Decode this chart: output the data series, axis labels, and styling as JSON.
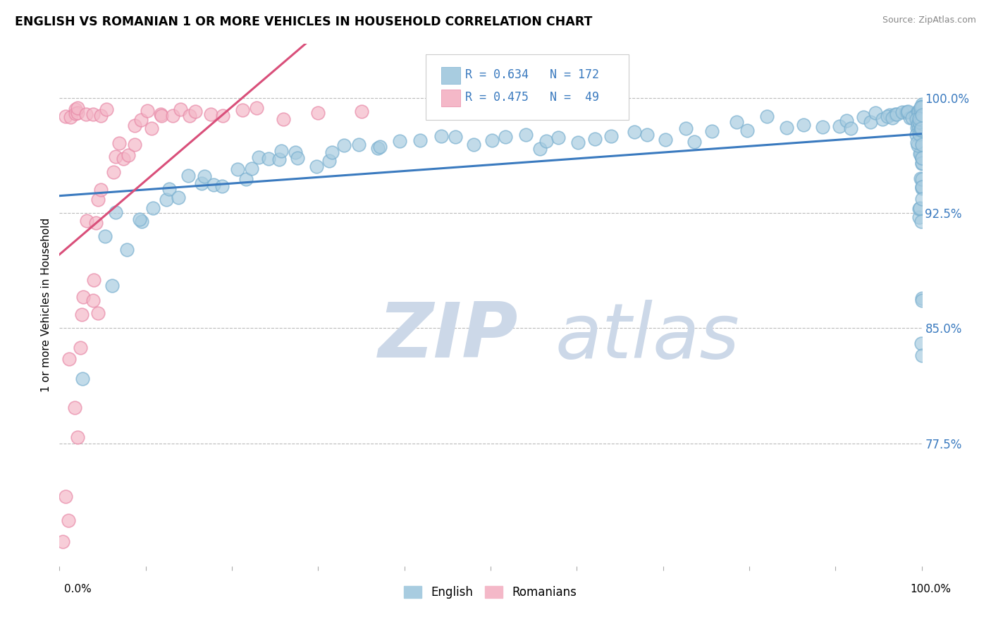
{
  "title": "ENGLISH VS ROMANIAN 1 OR MORE VEHICLES IN HOUSEHOLD CORRELATION CHART",
  "source": "Source: ZipAtlas.com",
  "ylabel": "1 or more Vehicles in Household",
  "ytick_labels": [
    "77.5%",
    "85.0%",
    "92.5%",
    "100.0%"
  ],
  "ytick_values": [
    0.775,
    0.85,
    0.925,
    1.0
  ],
  "legend_english_r": "R = 0.634",
  "legend_english_n": "N = 172",
  "legend_romanian_r": "R = 0.475",
  "legend_romanian_n": "N =  49",
  "legend_label_english": "English",
  "legend_label_romanian": "Romanians",
  "english_color": "#a8cce0",
  "english_edge_color": "#7ab0d0",
  "romanian_color": "#f4b8c8",
  "romanian_edge_color": "#e88aa8",
  "english_line_color": "#3a7abf",
  "romanian_line_color": "#d94f7a",
  "watermark_zip": "ZIP",
  "watermark_atlas": "atlas",
  "watermark_color": "#ccd8e8",
  "xlim": [
    0.0,
    1.0
  ],
  "ylim": [
    0.695,
    1.035
  ],
  "english_x": [
    0.03,
    0.05,
    0.06,
    0.07,
    0.08,
    0.09,
    0.1,
    0.11,
    0.12,
    0.13,
    0.14,
    0.15,
    0.16,
    0.17,
    0.18,
    0.19,
    0.2,
    0.21,
    0.22,
    0.23,
    0.24,
    0.25,
    0.26,
    0.27,
    0.28,
    0.3,
    0.31,
    0.32,
    0.33,
    0.35,
    0.37,
    0.38,
    0.4,
    0.42,
    0.44,
    0.46,
    0.48,
    0.5,
    0.52,
    0.54,
    0.56,
    0.57,
    0.58,
    0.6,
    0.62,
    0.64,
    0.66,
    0.68,
    0.7,
    0.72,
    0.74,
    0.76,
    0.78,
    0.8,
    0.82,
    0.84,
    0.86,
    0.88,
    0.9,
    0.91,
    0.92,
    0.93,
    0.94,
    0.95,
    0.95,
    0.96,
    0.96,
    0.97,
    0.97,
    0.97,
    0.98,
    0.98,
    0.98,
    0.99,
    0.99,
    0.99,
    0.99,
    1.0,
    1.0,
    1.0,
    1.0,
    1.0,
    1.0,
    1.0,
    1.0,
    1.0,
    1.0,
    1.0,
    1.0,
    1.0,
    1.0,
    1.0,
    1.0,
    1.0,
    1.0,
    1.0,
    1.0,
    1.0,
    1.0,
    1.0,
    1.0,
    1.0,
    1.0,
    1.0,
    1.0,
    1.0,
    1.0,
    1.0,
    1.0,
    1.0,
    1.0,
    1.0,
    1.0,
    1.0,
    1.0,
    1.0,
    1.0,
    1.0,
    1.0,
    1.0,
    1.0,
    1.0,
    1.0,
    1.0,
    1.0,
    1.0,
    1.0,
    1.0,
    1.0,
    1.0,
    1.0,
    1.0,
    1.0,
    1.0,
    1.0,
    1.0,
    1.0,
    1.0,
    1.0,
    1.0,
    1.0,
    1.0,
    1.0,
    1.0,
    1.0,
    1.0,
    1.0,
    1.0,
    1.0,
    1.0,
    1.0,
    1.0,
    1.0,
    1.0,
    1.0,
    1.0,
    1.0,
    1.0,
    1.0,
    1.0,
    1.0,
    1.0,
    1.0,
    1.0,
    1.0,
    1.0,
    1.0,
    1.0,
    1.0,
    1.0
  ],
  "english_y": [
    0.82,
    0.91,
    0.88,
    0.925,
    0.9,
    0.915,
    0.92,
    0.93,
    0.935,
    0.94,
    0.935,
    0.945,
    0.94,
    0.95,
    0.945,
    0.95,
    0.955,
    0.95,
    0.955,
    0.96,
    0.96,
    0.96,
    0.965,
    0.965,
    0.96,
    0.965,
    0.96,
    0.965,
    0.97,
    0.97,
    0.965,
    0.97,
    0.965,
    0.97,
    0.975,
    0.975,
    0.97,
    0.975,
    0.975,
    0.975,
    0.965,
    0.97,
    0.975,
    0.975,
    0.975,
    0.97,
    0.975,
    0.975,
    0.975,
    0.98,
    0.975,
    0.98,
    0.985,
    0.98,
    0.985,
    0.985,
    0.985,
    0.985,
    0.985,
    0.985,
    0.985,
    0.985,
    0.985,
    0.99,
    0.985,
    0.99,
    0.985,
    0.99,
    0.985,
    0.99,
    0.99,
    0.99,
    0.99,
    0.99,
    0.99,
    0.99,
    0.985,
    0.985,
    0.99,
    0.99,
    0.99,
    0.99,
    0.99,
    0.99,
    0.99,
    0.99,
    0.985,
    0.985,
    0.99,
    0.985,
    0.99,
    0.985,
    0.99,
    0.985,
    0.99,
    0.985,
    0.99,
    0.99,
    0.99,
    0.99,
    0.99,
    0.99,
    0.99,
    0.99,
    0.99,
    0.99,
    0.99,
    0.985,
    0.985,
    0.985,
    0.99,
    0.99,
    0.985,
    0.985,
    0.985,
    0.985,
    0.985,
    0.99,
    0.975,
    0.975,
    0.985,
    0.98,
    0.985,
    0.98,
    0.985,
    0.96,
    0.975,
    0.94,
    0.96,
    0.945,
    0.92,
    0.93,
    0.93,
    0.94,
    0.97,
    0.97,
    0.965,
    0.965,
    0.96,
    0.965,
    0.96,
    0.955,
    0.95,
    0.94,
    0.93,
    0.92,
    0.87,
    0.87,
    0.84,
    0.83,
    0.96,
    0.965,
    0.97,
    0.975,
    0.975,
    0.98,
    0.975,
    0.98,
    0.985,
    0.985,
    0.985,
    0.98,
    0.985,
    0.985,
    0.985,
    0.985,
    0.985,
    0.985,
    0.985,
    0.985
  ],
  "romanian_x": [
    0.005,
    0.008,
    0.01,
    0.012,
    0.015,
    0.015,
    0.018,
    0.02,
    0.022,
    0.025,
    0.025,
    0.028,
    0.03,
    0.03,
    0.032,
    0.035,
    0.035,
    0.038,
    0.04,
    0.042,
    0.045,
    0.048,
    0.05,
    0.055,
    0.06,
    0.065,
    0.07,
    0.075,
    0.08,
    0.085,
    0.09,
    0.095,
    0.1,
    0.11,
    0.115,
    0.12,
    0.13,
    0.14,
    0.15,
    0.16,
    0.175,
    0.19,
    0.21,
    0.23,
    0.26,
    0.3,
    0.35,
    0.005,
    0.01
  ],
  "romanian_y": [
    0.71,
    0.99,
    0.83,
    0.99,
    0.8,
    0.99,
    0.99,
    0.78,
    0.99,
    0.84,
    0.99,
    0.86,
    0.87,
    0.99,
    0.92,
    0.87,
    0.99,
    0.88,
    0.92,
    0.86,
    0.93,
    0.94,
    0.99,
    0.99,
    0.95,
    0.96,
    0.97,
    0.96,
    0.96,
    0.97,
    0.98,
    0.985,
    0.99,
    0.98,
    0.99,
    0.99,
    0.99,
    0.99,
    0.99,
    0.99,
    0.99,
    0.99,
    0.99,
    0.99,
    0.99,
    0.99,
    0.99,
    0.74,
    0.72
  ]
}
